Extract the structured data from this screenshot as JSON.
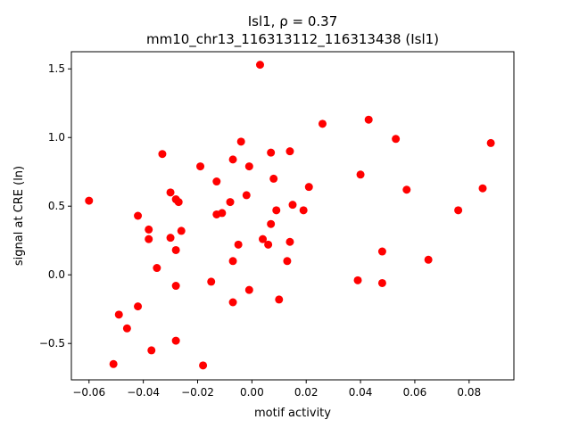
{
  "chart_data": {
    "type": "scatter",
    "title_line1": "Isl1, ρ = 0.37",
    "title_line2": "mm10_chr13_116313112_116313438 (Isl1)",
    "xlabel": "motif activity",
    "ylabel": "signal at CRE (ln)",
    "xlim": [
      -0.0665,
      0.0965
    ],
    "ylim": [
      -0.765,
      1.625
    ],
    "xticks": [
      -0.06,
      -0.04,
      -0.02,
      0.0,
      0.02,
      0.04,
      0.06,
      0.08
    ],
    "xtick_labels": [
      "−0.06",
      "−0.04",
      "−0.02",
      "0.00",
      "0.02",
      "0.04",
      "0.06",
      "0.08"
    ],
    "yticks": [
      -0.5,
      0.0,
      0.5,
      1.0,
      1.5
    ],
    "ytick_labels": [
      "−0.5",
      "0.0",
      "0.5",
      "1.0",
      "1.5"
    ],
    "grid": false,
    "marker_color": "#ff0000",
    "points": [
      {
        "x": 0.003,
        "y": 1.53
      },
      {
        "x": 0.026,
        "y": 1.1
      },
      {
        "x": 0.043,
        "y": 1.13
      },
      {
        "x": 0.053,
        "y": 0.99
      },
      {
        "x": 0.088,
        "y": 0.96
      },
      {
        "x": -0.004,
        "y": 0.97
      },
      {
        "x": -0.033,
        "y": 0.88
      },
      {
        "x": -0.007,
        "y": 0.84
      },
      {
        "x": 0.007,
        "y": 0.89
      },
      {
        "x": 0.014,
        "y": 0.9
      },
      {
        "x": -0.019,
        "y": 0.79
      },
      {
        "x": -0.001,
        "y": 0.79
      },
      {
        "x": 0.04,
        "y": 0.73
      },
      {
        "x": 0.008,
        "y": 0.7
      },
      {
        "x": -0.013,
        "y": 0.68
      },
      {
        "x": 0.021,
        "y": 0.64
      },
      {
        "x": 0.057,
        "y": 0.62
      },
      {
        "x": 0.085,
        "y": 0.63
      },
      {
        "x": -0.03,
        "y": 0.6
      },
      {
        "x": -0.028,
        "y": 0.55
      },
      {
        "x": -0.027,
        "y": 0.53
      },
      {
        "x": -0.06,
        "y": 0.54
      },
      {
        "x": -0.002,
        "y": 0.58
      },
      {
        "x": -0.008,
        "y": 0.53
      },
      {
        "x": 0.015,
        "y": 0.51
      },
      {
        "x": 0.009,
        "y": 0.47
      },
      {
        "x": 0.019,
        "y": 0.47
      },
      {
        "x": 0.076,
        "y": 0.47
      },
      {
        "x": -0.042,
        "y": 0.43
      },
      {
        "x": -0.013,
        "y": 0.44
      },
      {
        "x": -0.011,
        "y": 0.45
      },
      {
        "x": 0.007,
        "y": 0.37
      },
      {
        "x": -0.038,
        "y": 0.33
      },
      {
        "x": -0.026,
        "y": 0.32
      },
      {
        "x": -0.038,
        "y": 0.26
      },
      {
        "x": -0.03,
        "y": 0.27
      },
      {
        "x": 0.004,
        "y": 0.26
      },
      {
        "x": -0.005,
        "y": 0.22
      },
      {
        "x": 0.006,
        "y": 0.22
      },
      {
        "x": 0.014,
        "y": 0.24
      },
      {
        "x": -0.028,
        "y": 0.18
      },
      {
        "x": 0.048,
        "y": 0.17
      },
      {
        "x": -0.007,
        "y": 0.1
      },
      {
        "x": 0.013,
        "y": 0.1
      },
      {
        "x": 0.065,
        "y": 0.11
      },
      {
        "x": -0.035,
        "y": 0.05
      },
      {
        "x": -0.015,
        "y": -0.05
      },
      {
        "x": 0.039,
        "y": -0.04
      },
      {
        "x": 0.048,
        "y": -0.06
      },
      {
        "x": -0.028,
        "y": -0.08
      },
      {
        "x": -0.001,
        "y": -0.11
      },
      {
        "x": 0.01,
        "y": -0.18
      },
      {
        "x": -0.007,
        "y": -0.2
      },
      {
        "x": -0.042,
        "y": -0.23
      },
      {
        "x": -0.049,
        "y": -0.29
      },
      {
        "x": -0.046,
        "y": -0.39
      },
      {
        "x": -0.028,
        "y": -0.48
      },
      {
        "x": -0.037,
        "y": -0.55
      },
      {
        "x": -0.051,
        "y": -0.65
      },
      {
        "x": -0.018,
        "y": -0.66
      }
    ]
  }
}
